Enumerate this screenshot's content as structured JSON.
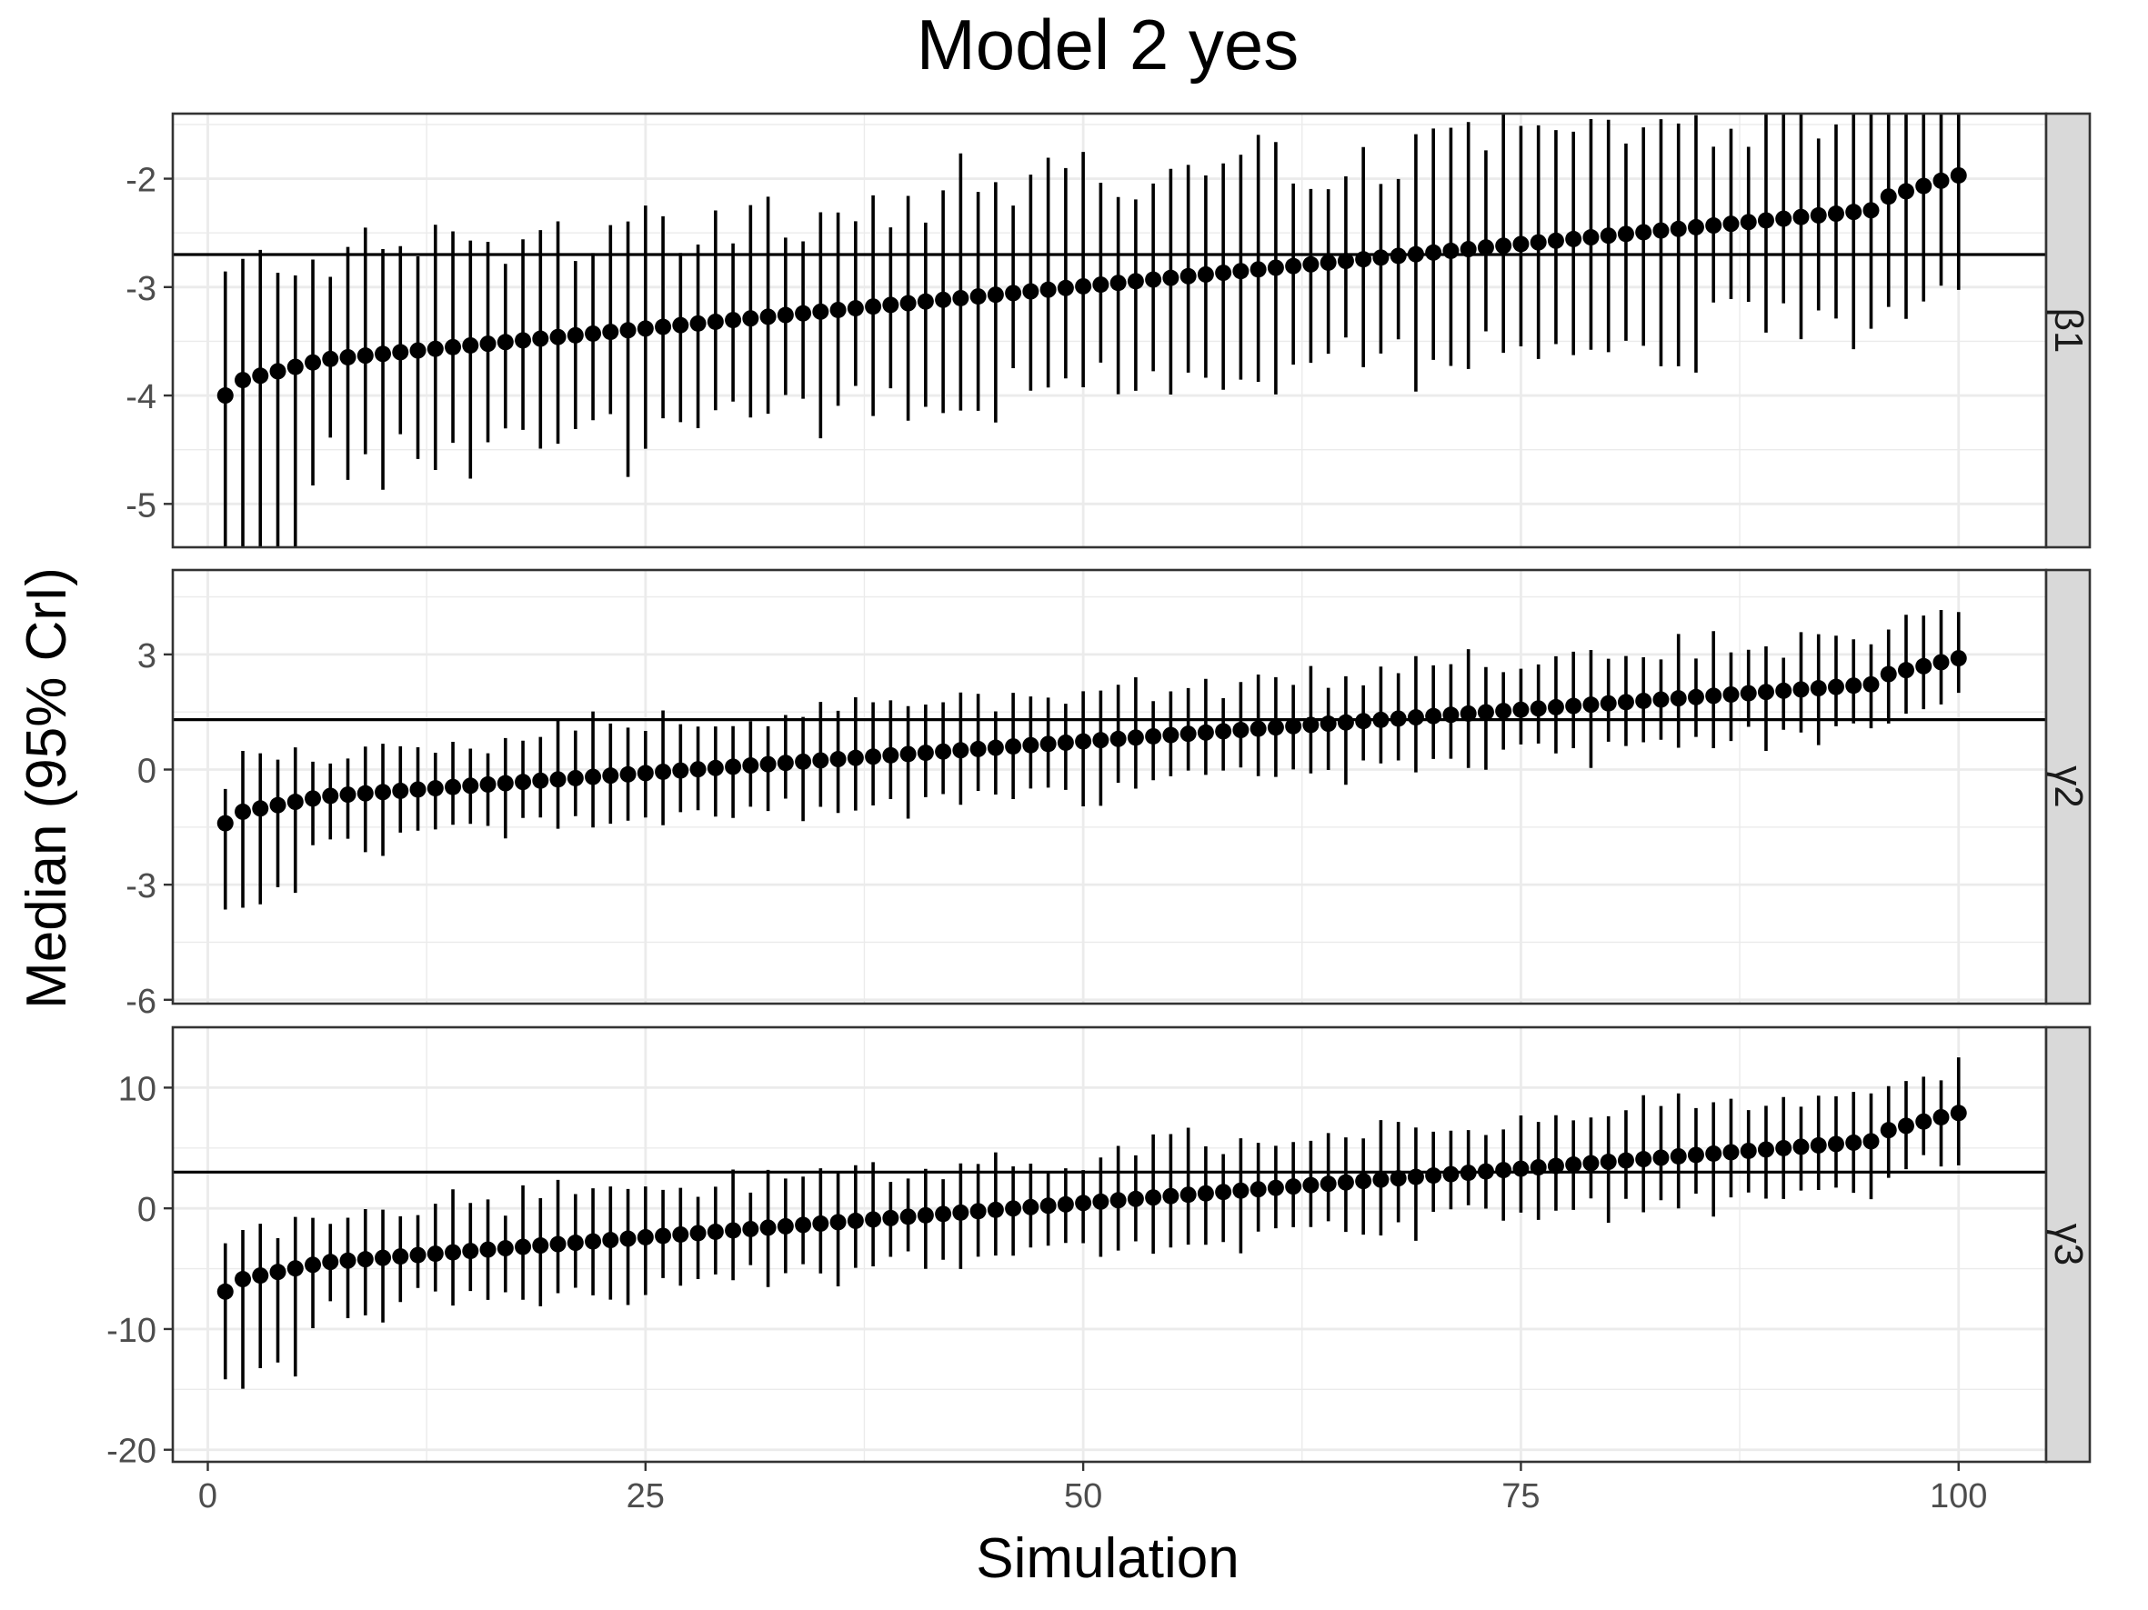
{
  "chart_data": {
    "type": "scatter",
    "title": "Model 2 yes",
    "xlabel": "Simulation",
    "ylabel": "Median (95% CrI)",
    "xlim": [
      -2,
      105
    ],
    "x_ticks": [
      0,
      25,
      50,
      75,
      100
    ],
    "x_tick_labels": [
      "0",
      "25",
      "50",
      "75",
      "100"
    ],
    "grid": true,
    "panels": [
      {
        "strip_label": "β1",
        "ylim": [
          -5.4,
          -1.4
        ],
        "y_ticks": [
          -5,
          -4,
          -3,
          -2
        ],
        "y_tick_labels": [
          "-5",
          "-4",
          "-3",
          "-2"
        ],
        "reference_line": -2.7,
        "start": -4.0,
        "end": -1.97,
        "ci_width": 1.9
      },
      {
        "strip_label": "γ2",
        "ylim": [
          -6.1,
          5.2
        ],
        "y_ticks": [
          -6,
          -3,
          0,
          3
        ],
        "y_tick_labels": [
          "-6",
          "-3",
          "0",
          "3"
        ],
        "reference_line": 1.3,
        "start": -1.4,
        "end": 2.9,
        "ci_width": 2.5
      },
      {
        "strip_label": "γ3",
        "ylim": [
          -21,
          15
        ],
        "y_ticks": [
          -20,
          -10,
          0,
          10
        ],
        "y_tick_labels": [
          "-20",
          "-10",
          "0",
          "10"
        ],
        "reference_line": 3.0,
        "start": -6.9,
        "end": 7.9,
        "ci_width": 8.0
      }
    ]
  }
}
